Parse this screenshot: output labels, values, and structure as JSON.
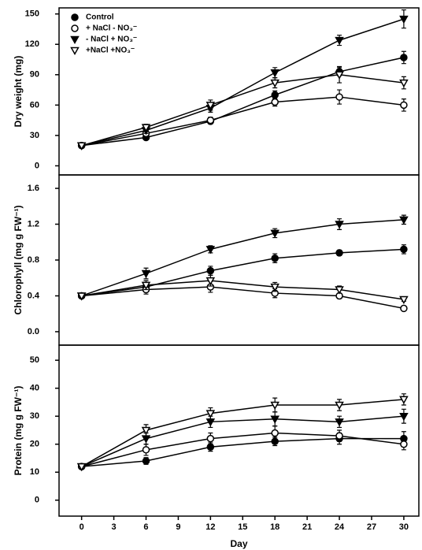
{
  "chart_data": [
    {
      "type": "line",
      "ylabel": "Dry weight (mg)",
      "x": [
        0,
        6,
        12,
        18,
        24,
        30
      ],
      "xlim": [
        -2.1,
        31.4
      ],
      "ylim": [
        -9,
        156
      ],
      "yticks": [
        0,
        30,
        60,
        90,
        120,
        150
      ],
      "legend": "top-left",
      "series": [
        {
          "name": "Control",
          "color": "#000000",
          "marker": "filled-circle",
          "values": [
            20,
            28,
            44,
            70,
            93,
            107
          ],
          "errors": [
            1.5,
            2,
            2.5,
            4,
            4,
            6
          ]
        },
        {
          "name": "+ NaCl - NO₃⁻",
          "color": "#000000",
          "marker": "open-circle",
          "values": [
            20,
            32,
            45,
            63,
            68,
            60
          ],
          "errors": [
            1.5,
            2,
            3,
            4,
            7,
            6
          ]
        },
        {
          "name": "- NaCl + NO₃⁻",
          "color": "#000000",
          "marker": "filled-triangle",
          "values": [
            20,
            35,
            57,
            92,
            124,
            145
          ],
          "errors": [
            1.5,
            3,
            4,
            5,
            5,
            9
          ]
        },
        {
          "name": "+NaCl +NO₃⁻",
          "color": "#000000",
          "marker": "open-triangle",
          "values": [
            20,
            38,
            60,
            82,
            90,
            82
          ],
          "errors": [
            1.5,
            3,
            5,
            5,
            8,
            6
          ]
        }
      ]
    },
    {
      "type": "line",
      "ylabel": "Chlorophyll (mg g FW⁻¹)",
      "x": [
        0,
        6,
        12,
        18,
        24,
        30
      ],
      "xlim": [
        -2.1,
        31.4
      ],
      "ylim": [
        -0.15,
        1.75
      ],
      "yticks": [
        {
          "value": 0,
          "label": "0.0"
        },
        0.4,
        0.8,
        1.2,
        1.6
      ],
      "series": [
        {
          "name": "Control",
          "color": "#000000",
          "marker": "filled-circle",
          "values": [
            0.4,
            0.5,
            0.68,
            0.82,
            0.88,
            0.92
          ],
          "errors": [
            0.02,
            0.04,
            0.05,
            0.05,
            0.03,
            0.05
          ]
        },
        {
          "name": "+ NaCl - NO₃⁻",
          "color": "#000000",
          "marker": "open-circle",
          "values": [
            0.4,
            0.47,
            0.5,
            0.43,
            0.4,
            0.26
          ],
          "errors": [
            0.02,
            0.05,
            0.06,
            0.05,
            0.03,
            0.02
          ]
        },
        {
          "name": "- NaCl + NO₃⁻",
          "color": "#000000",
          "marker": "filled-triangle",
          "values": [
            0.4,
            0.65,
            0.92,
            1.1,
            1.2,
            1.25
          ],
          "errors": [
            0.02,
            0.06,
            0.04,
            0.05,
            0.06,
            0.05
          ]
        },
        {
          "name": "+NaCl +NO₃⁻",
          "color": "#000000",
          "marker": "open-triangle",
          "values": [
            0.4,
            0.52,
            0.57,
            0.5,
            0.47,
            0.36
          ],
          "errors": [
            0.02,
            0.05,
            0.06,
            0.05,
            0.04,
            0.02
          ]
        }
      ]
    },
    {
      "type": "line",
      "ylabel": "Protein (mg g FW⁻¹)",
      "xlabel": "Day",
      "x": [
        0,
        6,
        12,
        18,
        24,
        30
      ],
      "xlim": [
        -2.1,
        31.4
      ],
      "xticks": [
        0,
        3,
        6,
        9,
        12,
        15,
        18,
        21,
        24,
        27,
        30
      ],
      "ylim": [
        -5.7,
        55.4
      ],
      "yticks": [
        0,
        10,
        20,
        30,
        40,
        50
      ],
      "series": [
        {
          "name": "Control",
          "color": "#000000",
          "marker": "filled-circle",
          "values": [
            12,
            14,
            19,
            21,
            22,
            22
          ],
          "errors": [
            0.8,
            1.2,
            1.5,
            1.5,
            2,
            2.5
          ]
        },
        {
          "name": "+ NaCl - NO₃⁻",
          "color": "#000000",
          "marker": "open-circle",
          "values": [
            12,
            18,
            22,
            24,
            23,
            20
          ],
          "errors": [
            0.8,
            2,
            2,
            2.5,
            2,
            2
          ]
        },
        {
          "name": "- NaCl + NO₃⁻",
          "color": "#000000",
          "marker": "filled-triangle",
          "values": [
            12,
            22,
            28,
            29,
            28,
            30
          ],
          "errors": [
            0.8,
            2,
            2,
            2.5,
            2,
            2.5
          ]
        },
        {
          "name": "+NaCl +NO₃⁻",
          "color": "#000000",
          "marker": "open-triangle",
          "values": [
            12,
            25,
            31,
            34,
            34,
            36
          ],
          "errors": [
            0.8,
            2,
            2,
            2.5,
            2,
            2
          ]
        }
      ]
    }
  ]
}
